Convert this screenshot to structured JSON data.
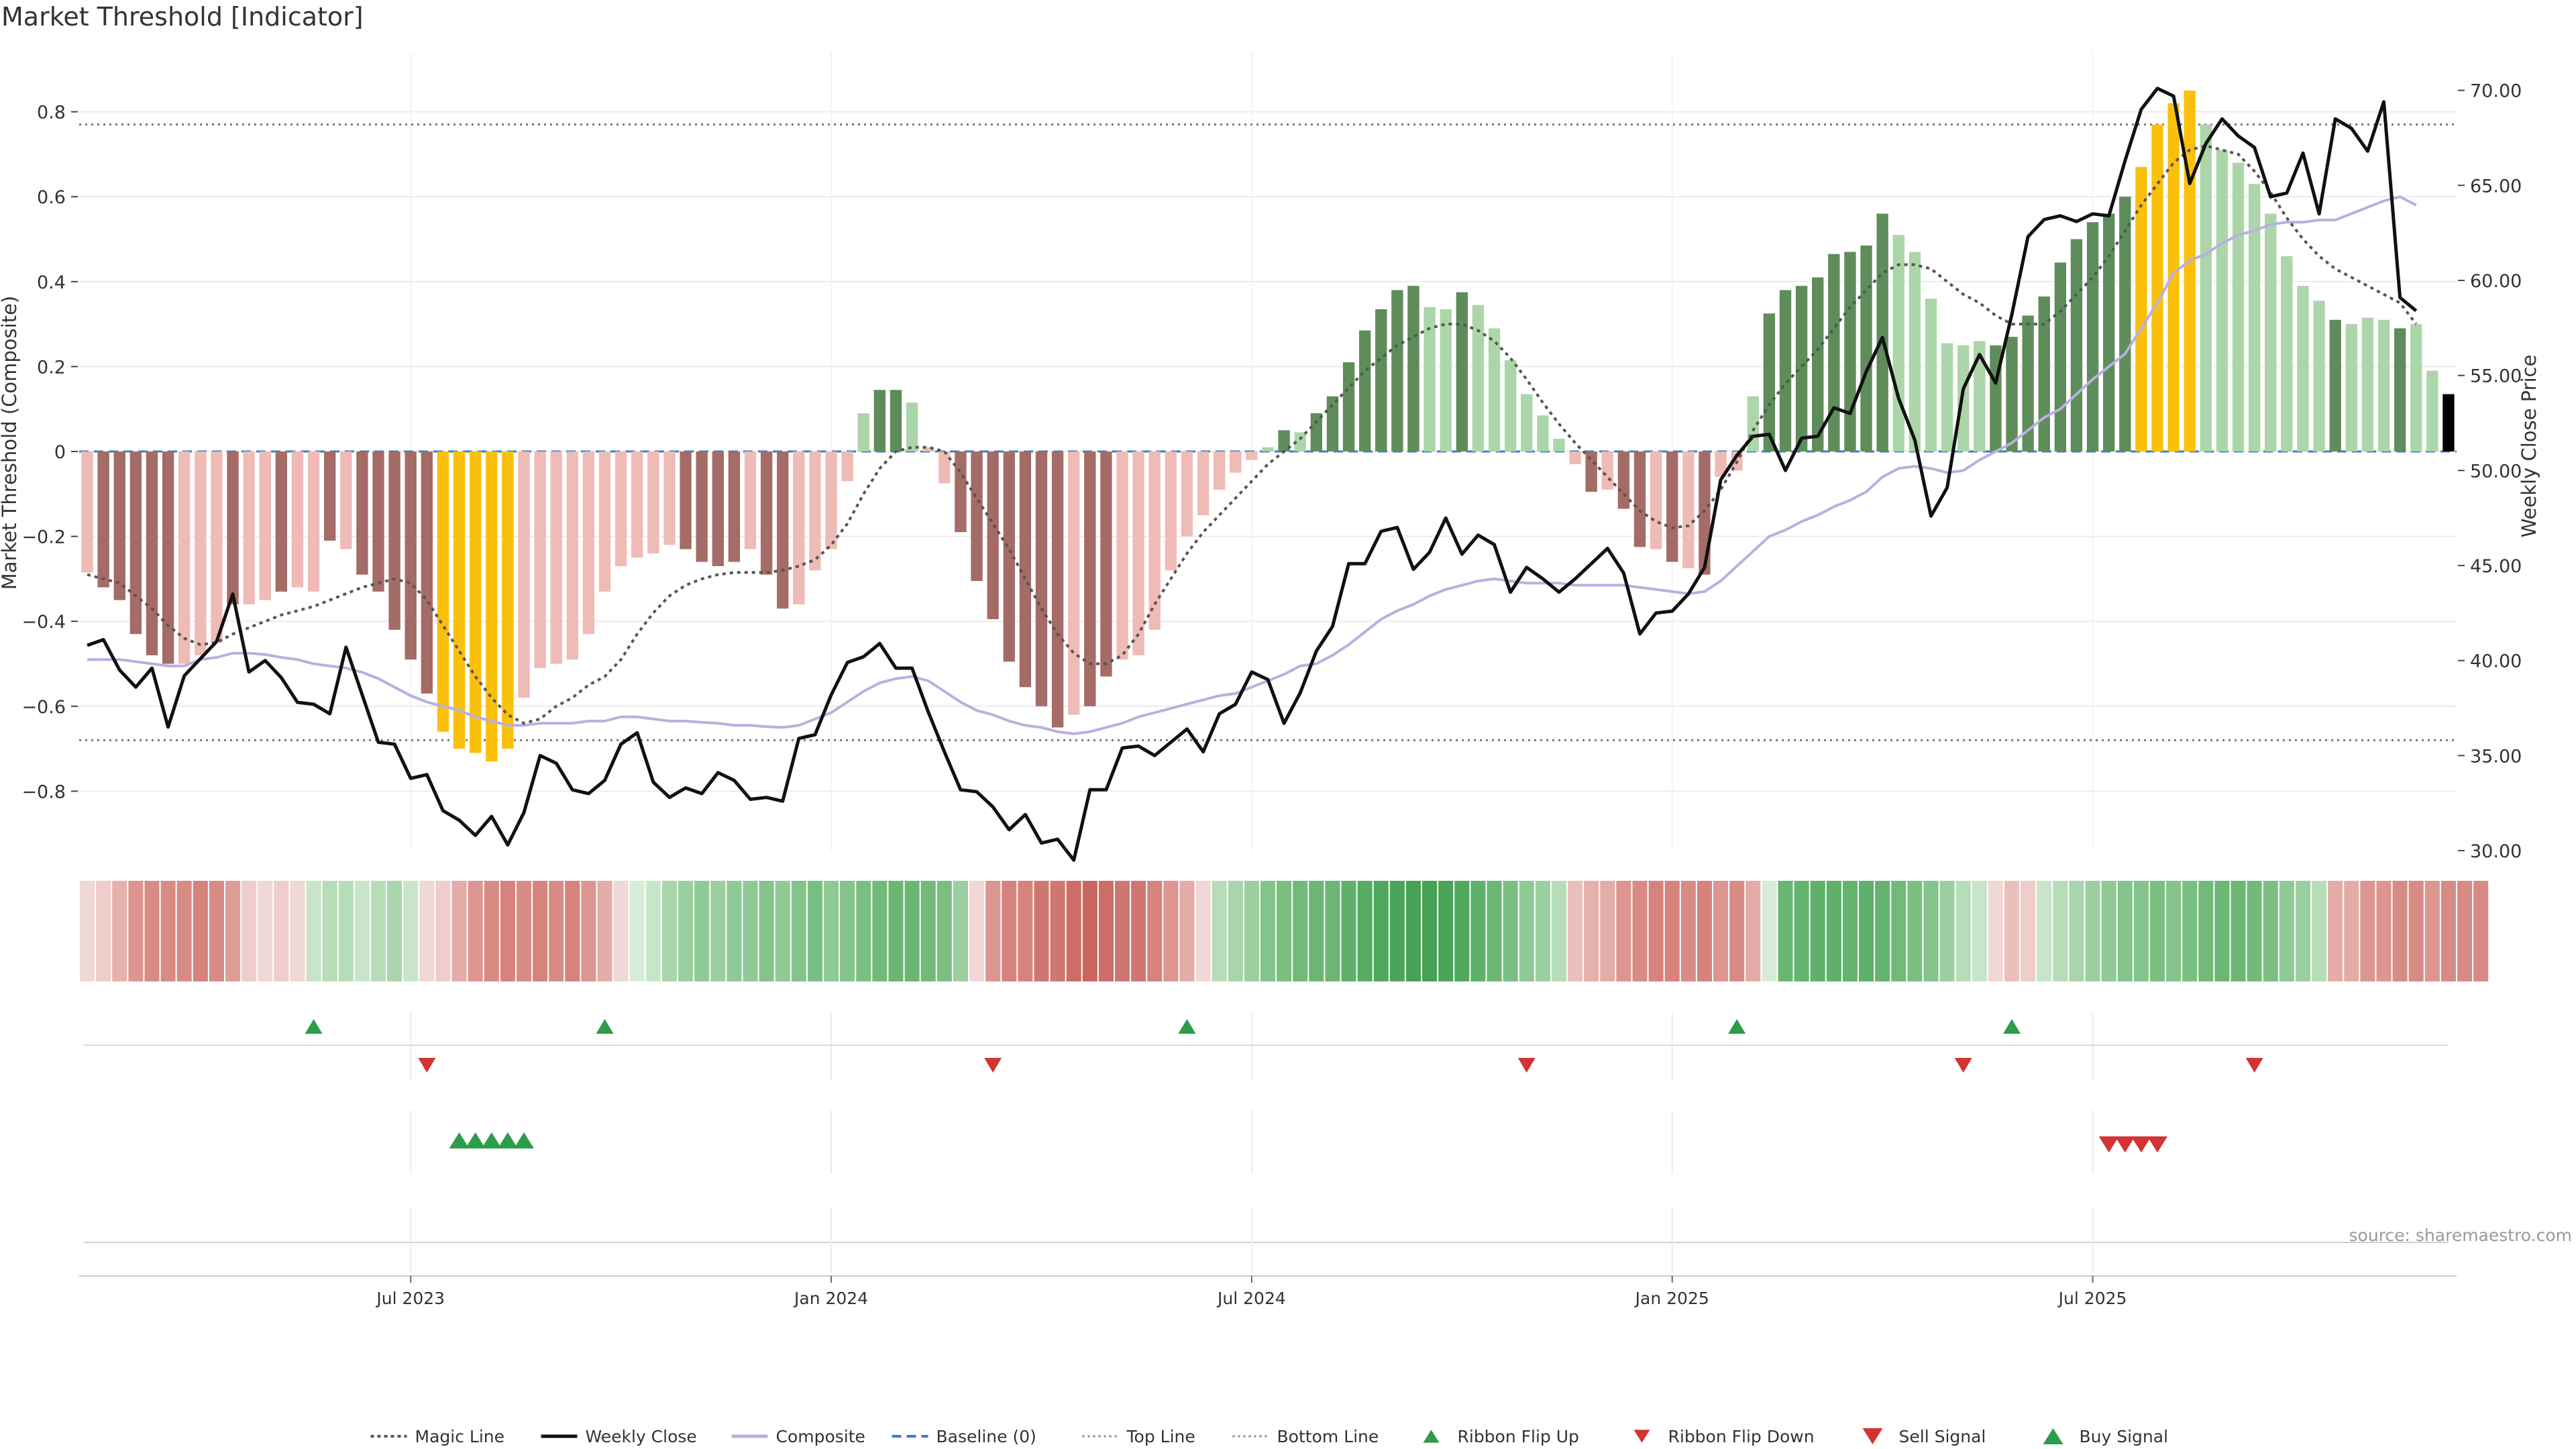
{
  "page": {
    "title": "Market Threshold [Indicator]",
    "source": "source: sharemaestro.com"
  },
  "chart_data": {
    "type": "bar",
    "title": "Market Threshold [Indicator]",
    "ylabel_left": "Market Threshold (Composite)",
    "ylabel_right": "Weekly Close Price",
    "ylim_left": [
      -0.94,
      0.94
    ],
    "ylim_right": [
      30,
      72
    ],
    "yticks_left": [
      -0.8,
      -0.6,
      -0.4,
      -0.2,
      0,
      0.2,
      0.4,
      0.6,
      0.8
    ],
    "yticks_right": [
      30,
      35,
      40,
      45,
      50,
      55,
      60,
      65,
      70
    ],
    "ytick_labels_left": [
      "−0.8",
      "−0.6",
      "−0.4",
      "−0.2",
      "0",
      "0.2",
      "0.4",
      "0.6",
      "0.8"
    ],
    "ytick_labels_right": [
      "30.00",
      "35.00",
      "40.00",
      "45.00",
      "50.00",
      "55.00",
      "60.00",
      "65.00",
      "70.00"
    ],
    "xlim": [
      0,
      143
    ],
    "xticks": [
      {
        "index": 20,
        "label": "Jul 2023"
      },
      {
        "index": 46,
        "label": "Jan 2024"
      },
      {
        "index": 72,
        "label": "Jul 2024"
      },
      {
        "index": 98,
        "label": "Jan 2025"
      },
      {
        "index": 124,
        "label": "Jul 2025"
      }
    ],
    "top_line": 0.77,
    "bottom_line": -0.68,
    "baseline": 0,
    "composite": [
      -0.285,
      -0.32,
      -0.35,
      -0.43,
      -0.48,
      -0.5,
      -0.5,
      -0.48,
      -0.45,
      -0.36,
      -0.36,
      -0.35,
      -0.33,
      -0.32,
      -0.33,
      -0.21,
      -0.23,
      -0.29,
      -0.33,
      -0.42,
      -0.49,
      -0.57,
      -0.66,
      -0.7,
      -0.71,
      -0.73,
      -0.7,
      -0.58,
      -0.51,
      -0.5,
      -0.49,
      -0.43,
      -0.33,
      -0.27,
      -0.25,
      -0.24,
      -0.22,
      -0.23,
      -0.26,
      -0.27,
      -0.26,
      -0.23,
      -0.29,
      -0.37,
      -0.36,
      -0.28,
      -0.23,
      -0.07,
      0.09,
      0.145,
      0.145,
      0.115,
      0.01,
      -0.075,
      -0.19,
      -0.305,
      -0.395,
      -0.495,
      -0.555,
      -0.6,
      -0.65,
      -0.62,
      -0.6,
      -0.53,
      -0.49,
      -0.48,
      -0.42,
      -0.28,
      -0.2,
      -0.15,
      -0.09,
      -0.05,
      -0.02,
      0.01,
      0.05,
      0.045,
      0.09,
      0.13,
      0.21,
      0.285,
      0.335,
      0.38,
      0.39,
      0.34,
      0.335,
      0.375,
      0.345,
      0.29,
      0.215,
      0.135,
      0.085,
      0.03,
      -0.03,
      -0.095,
      -0.09,
      -0.135,
      -0.225,
      -0.23,
      -0.26,
      -0.275,
      -0.29,
      -0.06,
      -0.045,
      0.13,
      0.325,
      0.38,
      0.39,
      0.41,
      0.465,
      0.47,
      0.485,
      0.56,
      0.51,
      0.47,
      0.36,
      0.255,
      0.25,
      0.26,
      0.25,
      0.27,
      0.32,
      0.365,
      0.445,
      0.5,
      0.54,
      0.56,
      0.6,
      0.67,
      0.77,
      0.82,
      0.85,
      0.77,
      0.71,
      0.68,
      0.63,
      0.56,
      0.46,
      0.39,
      0.355,
      0.31,
      0.3,
      0.315,
      0.31,
      0.29,
      0.3,
      0.19,
      0.135
    ],
    "bar_colors": [
      "#efbbb6",
      "#a56b66",
      "#a56b66",
      "#a56b66",
      "#a56b66",
      "#a56b66",
      "#efbbb6",
      "#efbbb6",
      "#efbbb6",
      "#a56b66",
      "#efbbb6",
      "#efbbb6",
      "#a56b66",
      "#efbbb6",
      "#efbbb6",
      "#a56b66",
      "#efbbb6",
      "#a56b66",
      "#a56b66",
      "#a56b66",
      "#a56b66",
      "#a56b66",
      "#fbc00b",
      "#fbc00b",
      "#fbc00b",
      "#fbc00b",
      "#fbc00b",
      "#efbbb6",
      "#efbbb6",
      "#efbbb6",
      "#efbbb6",
      "#efbbb6",
      "#efbbb6",
      "#efbbb6",
      "#efbbb6",
      "#efbbb6",
      "#efbbb6",
      "#a56b66",
      "#a56b66",
      "#a56b66",
      "#a56b66",
      "#efbbb6",
      "#a56b66",
      "#a56b66",
      "#efbbb6",
      "#efbbb6",
      "#efbbb6",
      "#efbbb6",
      "#acd6a9",
      "#5f8c5b",
      "#5f8c5b",
      "#acd6a9",
      "#efbbb6",
      "#efbbb6",
      "#a56b66",
      "#a56b66",
      "#a56b66",
      "#a56b66",
      "#a56b66",
      "#a56b66",
      "#a56b66",
      "#efbbb6",
      "#a56b66",
      "#a56b66",
      "#efbbb6",
      "#efbbb6",
      "#efbbb6",
      "#efbbb6",
      "#efbbb6",
      "#efbbb6",
      "#efbbb6",
      "#efbbb6",
      "#efbbb6",
      "#acd6a9",
      "#5f8c5b",
      "#acd6a9",
      "#5f8c5b",
      "#5f8c5b",
      "#5f8c5b",
      "#5f8c5b",
      "#5f8c5b",
      "#5f8c5b",
      "#5f8c5b",
      "#acd6a9",
      "#acd6a9",
      "#5f8c5b",
      "#acd6a9",
      "#acd6a9",
      "#acd6a9",
      "#acd6a9",
      "#acd6a9",
      "#acd6a9",
      "#efbbb6",
      "#a56b66",
      "#efbbb6",
      "#a56b66",
      "#a56b66",
      "#efbbb6",
      "#a56b66",
      "#efbbb6",
      "#a56b66",
      "#efbbb6",
      "#efbbb6",
      "#acd6a9",
      "#5f8c5b",
      "#5f8c5b",
      "#5f8c5b",
      "#5f8c5b",
      "#5f8c5b",
      "#5f8c5b",
      "#5f8c5b",
      "#5f8c5b",
      "#acd6a9",
      "#acd6a9",
      "#acd6a9",
      "#acd6a9",
      "#acd6a9",
      "#acd6a9",
      "#5f8c5b",
      "#5f8c5b",
      "#5f8c5b",
      "#5f8c5b",
      "#5f8c5b",
      "#5f8c5b",
      "#5f8c5b",
      "#5f8c5b",
      "#5f8c5b",
      "#fbc00b",
      "#fbc00b",
      "#fbc00b",
      "#fbc00b",
      "#acd6a9",
      "#acd6a9",
      "#acd6a9",
      "#acd6a9",
      "#acd6a9",
      "#acd6a9",
      "#acd6a9",
      "#acd6a9",
      "#5f8c5b",
      "#acd6a9",
      "#acd6a9",
      "#acd6a9",
      "#5f8c5b",
      "#acd6a9",
      "#acd6a9"
    ],
    "magic_line": [
      -0.29,
      -0.3,
      -0.31,
      -0.34,
      -0.37,
      -0.41,
      -0.44,
      -0.455,
      -0.45,
      -0.43,
      -0.415,
      -0.4,
      -0.385,
      -0.375,
      -0.365,
      -0.35,
      -0.335,
      -0.32,
      -0.31,
      -0.3,
      -0.31,
      -0.35,
      -0.41,
      -0.47,
      -0.53,
      -0.58,
      -0.62,
      -0.64,
      -0.63,
      -0.6,
      -0.58,
      -0.55,
      -0.53,
      -0.49,
      -0.43,
      -0.38,
      -0.34,
      -0.315,
      -0.3,
      -0.29,
      -0.285,
      -0.285,
      -0.285,
      -0.28,
      -0.27,
      -0.255,
      -0.22,
      -0.17,
      -0.1,
      -0.04,
      0.0,
      0.01,
      0.01,
      0.0,
      -0.05,
      -0.11,
      -0.17,
      -0.23,
      -0.3,
      -0.37,
      -0.43,
      -0.475,
      -0.5,
      -0.5,
      -0.48,
      -0.43,
      -0.36,
      -0.3,
      -0.24,
      -0.19,
      -0.15,
      -0.11,
      -0.07,
      -0.03,
      0.0,
      0.03,
      0.07,
      0.11,
      0.15,
      0.19,
      0.22,
      0.25,
      0.27,
      0.29,
      0.3,
      0.3,
      0.285,
      0.26,
      0.22,
      0.17,
      0.115,
      0.065,
      0.02,
      -0.02,
      -0.06,
      -0.1,
      -0.14,
      -0.165,
      -0.18,
      -0.175,
      -0.14,
      -0.09,
      -0.025,
      0.05,
      0.11,
      0.16,
      0.2,
      0.24,
      0.29,
      0.34,
      0.38,
      0.42,
      0.44,
      0.44,
      0.43,
      0.4,
      0.37,
      0.35,
      0.32,
      0.3,
      0.3,
      0.3,
      0.33,
      0.37,
      0.41,
      0.46,
      0.52,
      0.58,
      0.63,
      0.68,
      0.71,
      0.72,
      0.71,
      0.7,
      0.66,
      0.61,
      0.55,
      0.5,
      0.46,
      0.43,
      0.41,
      0.39,
      0.37,
      0.35,
      0.3
    ],
    "weekly_close": [
      40.8,
      41.1,
      39.5,
      38.6,
      39.6,
      36.5,
      39.2,
      40.1,
      41.0,
      43.5,
      39.4,
      40.0,
      39.1,
      37.8,
      37.7,
      37.2,
      40.7,
      38.2,
      35.7,
      35.6,
      33.8,
      34.0,
      32.1,
      31.6,
      30.8,
      31.8,
      30.3,
      32.0,
      35.0,
      34.6,
      33.2,
      33.0,
      33.7,
      35.6,
      36.2,
      33.6,
      32.8,
      33.3,
      33.0,
      34.1,
      33.7,
      32.7,
      32.8,
      32.6,
      35.9,
      36.1,
      38.2,
      39.9,
      40.2,
      40.9,
      39.6,
      39.6,
      37.3,
      35.2,
      33.2,
      33.1,
      32.3,
      31.1,
      31.9,
      30.4,
      30.6,
      29.5,
      33.2,
      33.2,
      35.4,
      35.5,
      35.0,
      35.7,
      36.4,
      35.2,
      37.2,
      37.7,
      39.4,
      39.0,
      36.7,
      38.3,
      40.5,
      41.8,
      45.1,
      45.1,
      46.8,
      47.0,
      44.8,
      45.7,
      47.5,
      45.6,
      46.6,
      46.1,
      43.6,
      44.9,
      44.3,
      43.6,
      44.3,
      45.1,
      45.9,
      44.6,
      41.4,
      42.5,
      42.6,
      43.5,
      44.9,
      49.5,
      50.8,
      51.8,
      51.9,
      50.0,
      51.7,
      51.8,
      53.3,
      53.0,
      55.2,
      57.0,
      53.8,
      51.6,
      47.6,
      49.1,
      54.3,
      56.1,
      54.6,
      58.2,
      62.3,
      63.2,
      63.4,
      63.1,
      63.5,
      63.4,
      66.3,
      69.0,
      70.1,
      69.7,
      65.1,
      67.2,
      68.5,
      67.6,
      67.0,
      64.4,
      64.6,
      66.7,
      63.5,
      68.5,
      68.0,
      66.8,
      69.4,
      59.1,
      58.4
    ],
    "composite_line": [
      -0.49,
      -0.49,
      -0.49,
      -0.495,
      -0.5,
      -0.505,
      -0.505,
      -0.49,
      -0.485,
      -0.475,
      -0.475,
      -0.478,
      -0.485,
      -0.49,
      -0.5,
      -0.505,
      -0.51,
      -0.52,
      -0.535,
      -0.555,
      -0.575,
      -0.59,
      -0.6,
      -0.61,
      -0.625,
      -0.635,
      -0.645,
      -0.645,
      -0.64,
      -0.64,
      -0.64,
      -0.635,
      -0.635,
      -0.625,
      -0.625,
      -0.63,
      -0.635,
      -0.635,
      -0.638,
      -0.64,
      -0.645,
      -0.645,
      -0.648,
      -0.65,
      -0.645,
      -0.63,
      -0.615,
      -0.59,
      -0.565,
      -0.545,
      -0.535,
      -0.53,
      -0.54,
      -0.565,
      -0.59,
      -0.61,
      -0.62,
      -0.635,
      -0.645,
      -0.65,
      -0.66,
      -0.665,
      -0.66,
      -0.65,
      -0.64,
      -0.625,
      -0.615,
      -0.605,
      -0.595,
      -0.585,
      -0.575,
      -0.57,
      -0.555,
      -0.54,
      -0.525,
      -0.505,
      -0.5,
      -0.48,
      -0.455,
      -0.425,
      -0.395,
      -0.375,
      -0.36,
      -0.34,
      -0.325,
      -0.315,
      -0.305,
      -0.3,
      -0.305,
      -0.31,
      -0.31,
      -0.31,
      -0.315,
      -0.315,
      -0.315,
      -0.315,
      -0.32,
      -0.325,
      -0.33,
      -0.335,
      -0.33,
      -0.305,
      -0.27,
      -0.235,
      -0.2,
      -0.185,
      -0.165,
      -0.15,
      -0.13,
      -0.115,
      -0.095,
      -0.06,
      -0.04,
      -0.035,
      -0.04,
      -0.05,
      -0.045,
      -0.02,
      0.0,
      0.02,
      0.05,
      0.08,
      0.1,
      0.135,
      0.17,
      0.2,
      0.23,
      0.29,
      0.35,
      0.42,
      0.45,
      0.465,
      0.49,
      0.51,
      0.52,
      0.535,
      0.54,
      0.54,
      0.545,
      0.545,
      0.56,
      0.575,
      0.59,
      0.6,
      0.58
    ],
    "ribbon_colors": [
      "#f0d8d6",
      "#eecdca",
      "#e7b0ab",
      "#dc9590",
      "#d88b85",
      "#d88b85",
      "#d88b85",
      "#d6827d",
      "#d88b85",
      "#de9c97",
      "#eecdca",
      "#f0d8d6",
      "#eecdca",
      "#f0d8d6",
      "#c8e5c9",
      "#b6dcb8",
      "#b6dcb8",
      "#c8e5c9",
      "#b6dcb8",
      "#a9d5ac",
      "#c8e5c9",
      "#f0d8d6",
      "#eecdca",
      "#e4aca7",
      "#dc9590",
      "#d88b85",
      "#d6827d",
      "#d88b85",
      "#d6827d",
      "#d88b85",
      "#d6827d",
      "#dc9590",
      "#e4aca7",
      "#f0d8d6",
      "#d7ecd8",
      "#c8e5c9",
      "#a9d5ac",
      "#9ccfa0",
      "#8ec996",
      "#9ccfa0",
      "#8ec996",
      "#8ec996",
      "#84c38b",
      "#8ec996",
      "#84c38b",
      "#7abf82",
      "#8ec996",
      "#84c38b",
      "#7abf82",
      "#71ba79",
      "#6ab673",
      "#6ab673",
      "#71ba79",
      "#7abf82",
      "#9ccfa0",
      "#f0d8d6",
      "#dc9590",
      "#d6827d",
      "#d6827d",
      "#d07670",
      "#d07670",
      "#cc6d68",
      "#c96560",
      "#cc6d68",
      "#d07670",
      "#d07670",
      "#d6827d",
      "#dc9590",
      "#e4aca7",
      "#f0d8d6",
      "#b6dcb8",
      "#a9d5ac",
      "#9ccfa0",
      "#84c38b",
      "#7abf82",
      "#71ba79",
      "#6ab673",
      "#6ab673",
      "#5eb06b",
      "#57ac64",
      "#50a85e",
      "#4aa558",
      "#46a254",
      "#46a254",
      "#4aa558",
      "#50a85e",
      "#5eb06b",
      "#6ab673",
      "#7abf82",
      "#8ec996",
      "#9ccfa0",
      "#b6dcb8",
      "#ebc0bc",
      "#e7b0ab",
      "#e4aca7",
      "#dc9590",
      "#d88b85",
      "#d6827d",
      "#d6827d",
      "#d88b85",
      "#d6827d",
      "#dc9590",
      "#d88b85",
      "#e4aca7",
      "#d7ecd8",
      "#6ab673",
      "#64b36f",
      "#5eb06b",
      "#5eb06b",
      "#64b36f",
      "#5eb06b",
      "#64b36f",
      "#71ba79",
      "#7abf82",
      "#84c38b",
      "#9ccfa0",
      "#b6dcb8",
      "#c8e5c9",
      "#f0d8d6",
      "#ebc0bc",
      "#eecdca",
      "#c8e5c9",
      "#b6dcb8",
      "#a9d5ac",
      "#9ccfa0",
      "#8ec996",
      "#84c38b",
      "#84c38b",
      "#7abf82",
      "#84c38b",
      "#7abf82",
      "#71ba79",
      "#6ab673",
      "#6ab673",
      "#71ba79",
      "#7abf82",
      "#8ec996",
      "#9ccfa0",
      "#b6dcb8",
      "#e4aca7",
      "#e4aca7",
      "#dc9590",
      "#dc9590",
      "#d88b85",
      "#d88b85",
      "#dc9590",
      "#d88b85",
      "#d88b85",
      "#d88b85"
    ],
    "ribbon_flip_up": [
      14,
      32,
      68,
      102,
      119
    ],
    "ribbon_flip_down": [
      21,
      56,
      89,
      116,
      134
    ],
    "buy_signal": [
      23,
      24,
      25,
      26,
      27
    ],
    "sell_signal": [
      125,
      126,
      127,
      128
    ],
    "legend": [
      {
        "label": "Magic Line",
        "symbol": "dotted"
      },
      {
        "label": "Weekly Close",
        "symbol": "solid-black"
      },
      {
        "label": "Composite",
        "symbol": "solid-lavender"
      },
      {
        "label": "Baseline (0)",
        "symbol": "dashed-blue"
      },
      {
        "label": "Top Line",
        "symbol": "dotted-light"
      },
      {
        "label": "Bottom Line",
        "symbol": "dotted-light"
      },
      {
        "label": "Ribbon Flip Up",
        "symbol": "triangle-up-green"
      },
      {
        "label": "Ribbon Flip Down",
        "symbol": "triangle-down-red"
      },
      {
        "label": "Sell Signal",
        "symbol": "triangle-down-red-large"
      },
      {
        "label": "Buy Signal",
        "symbol": "triangle-up-green-large"
      }
    ],
    "legend_placement": "bottom-center",
    "colors": {
      "weekly_close": "#111111",
      "composite": "#b8b0e0",
      "magic_line": "#555555",
      "baseline": "#3b7dc4",
      "threshold_lines": "#777777",
      "flip_up": "#2e9c4a",
      "flip_down": "#d33333",
      "grid": "#ececec"
    }
  }
}
